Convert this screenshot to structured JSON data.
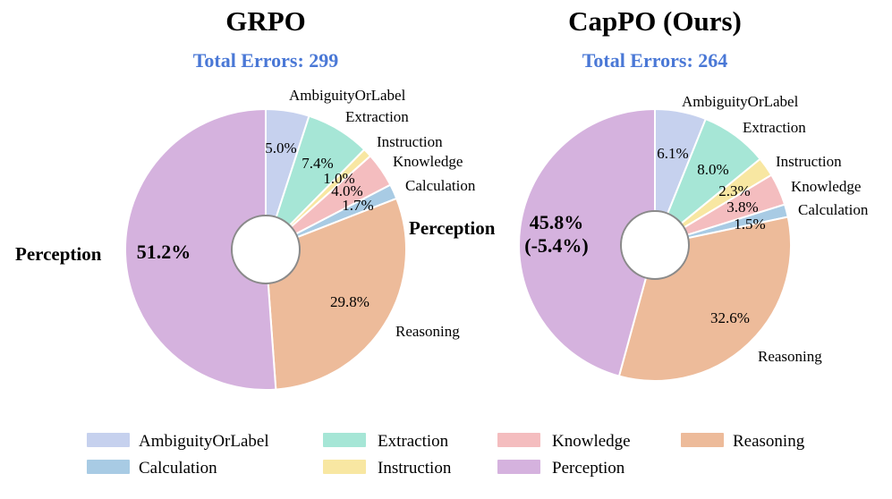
{
  "colors": {
    "AmbiguityOrLabel": "#c6d1ee",
    "Extraction": "#a6e6d6",
    "Instruction": "#f8e7a2",
    "Knowledge": "#f4bdbf",
    "Calculation": "#a8cbe4",
    "Reasoning": "#edbb9a",
    "Perception": "#d5b2de",
    "subtitle": "#4a78d6"
  },
  "legend": {
    "items": [
      "AmbiguityOrLabel",
      "Extraction",
      "Knowledge",
      "Reasoning",
      "Calculation",
      "Instruction",
      "Perception"
    ]
  },
  "chart_data": [
    {
      "type": "pie",
      "title": "GRPO",
      "subtitle": "Total Errors: 299",
      "categories": [
        "AmbiguityOrLabel",
        "Extraction",
        "Instruction",
        "Knowledge",
        "Calculation",
        "Reasoning",
        "Perception"
      ],
      "values": [
        5.0,
        7.4,
        1.0,
        4.0,
        1.7,
        29.8,
        51.2
      ],
      "value_labels": [
        "5.0%",
        "7.4%",
        "1.0%",
        "4.0%",
        "1.7%",
        "29.8%",
        "51.2%"
      ],
      "start": "12 o'clock",
      "direction": "clockwise",
      "donut_hole": true
    },
    {
      "type": "pie",
      "title": "CapPO (Ours)",
      "subtitle": "Total Errors: 264",
      "categories": [
        "AmbiguityOrLabel",
        "Extraction",
        "Instruction",
        "Knowledge",
        "Calculation",
        "Reasoning",
        "Perception"
      ],
      "values": [
        6.1,
        8.0,
        2.3,
        3.8,
        1.5,
        32.6,
        45.8
      ],
      "value_labels": [
        "6.1%",
        "8.0%",
        "2.3%",
        "3.8%",
        "1.5%",
        "32.6%",
        "45.8%"
      ],
      "perception_change": "(-5.4%)",
      "start": "12 o'clock",
      "direction": "clockwise",
      "donut_hole": true
    }
  ]
}
